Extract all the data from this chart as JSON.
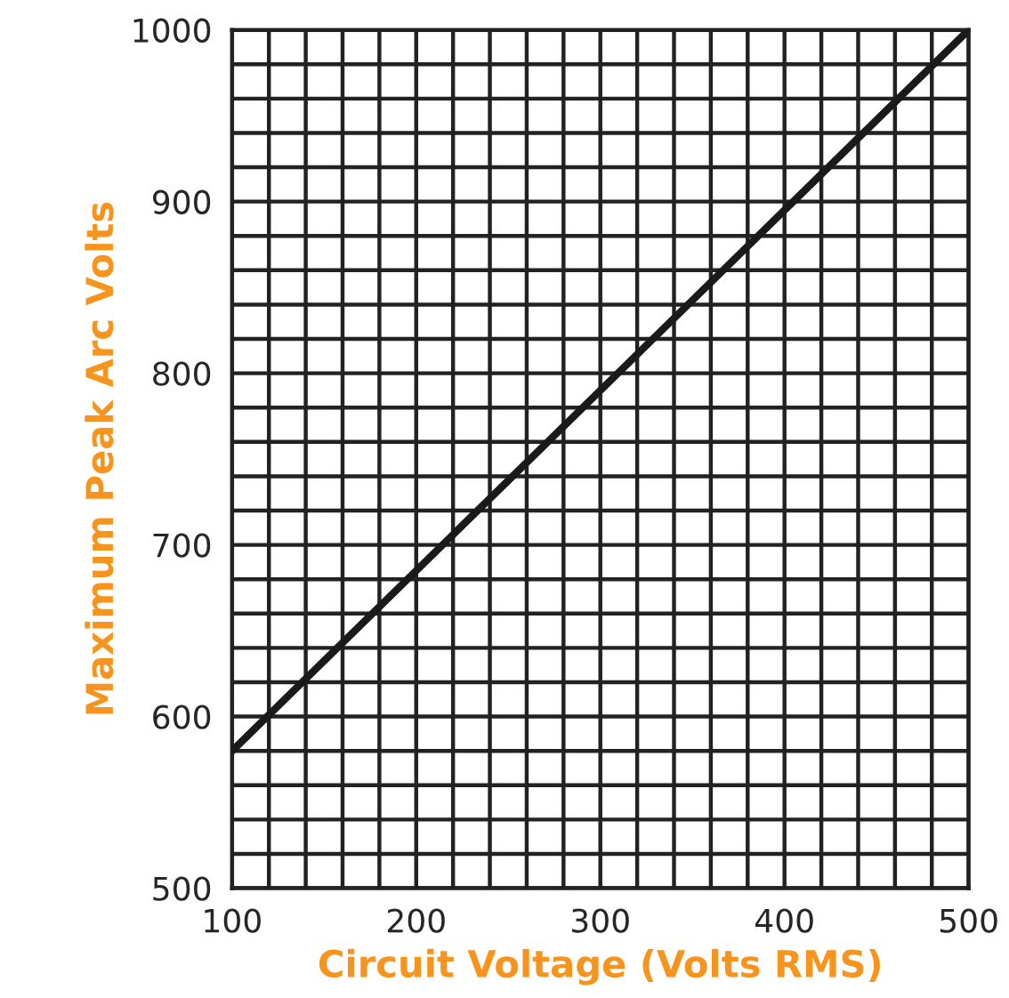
{
  "chart_data": {
    "type": "line",
    "xlabel": "Circuit Voltage (Volts RMS)",
    "ylabel": "Maximum Peak Arc Volts",
    "x": [
      100,
      500
    ],
    "series": [
      {
        "color": "#1a1a1a",
        "values": [
          580,
          1000
        ]
      }
    ],
    "xlim": [
      100,
      500
    ],
    "ylim": [
      500,
      1000
    ],
    "xticks": [
      100,
      {
        "value": 120,
        "label": null
      },
      {
        "value": 140,
        "label": null
      },
      {
        "value": 160,
        "label": null
      },
      {
        "value": 180,
        "label": null
      },
      200,
      {
        "value": 220,
        "label": null
      },
      {
        "value": 240,
        "label": null
      },
      {
        "value": 260,
        "label": null
      },
      {
        "value": 280,
        "label": null
      },
      300,
      {
        "value": 320,
        "label": null
      },
      {
        "value": 340,
        "label": null
      },
      {
        "value": 360,
        "label": null
      },
      {
        "value": 380,
        "label": null
      },
      400,
      {
        "value": 420,
        "label": null
      },
      {
        "value": 440,
        "label": null
      },
      {
        "value": 460,
        "label": null
      },
      {
        "value": 480,
        "label": null
      },
      500
    ],
    "yticks": [
      500,
      {
        "value": 520,
        "label": null
      },
      {
        "value": 540,
        "label": null
      },
      {
        "value": 560,
        "label": null
      },
      {
        "value": 580,
        "label": null
      },
      600,
      {
        "value": 620,
        "label": null
      },
      {
        "value": 640,
        "label": null
      },
      {
        "value": 660,
        "label": null
      },
      {
        "value": 680,
        "label": null
      },
      700,
      {
        "value": 720,
        "label": null
      },
      {
        "value": 740,
        "label": null
      },
      {
        "value": 760,
        "label": null
      },
      {
        "value": 780,
        "label": null
      },
      800,
      {
        "value": 820,
        "label": null
      },
      {
        "value": 840,
        "label": null
      },
      {
        "value": 860,
        "label": null
      },
      {
        "value": 880,
        "label": null
      },
      900,
      {
        "value": 920,
        "label": null
      },
      {
        "value": 940,
        "label": null
      },
      {
        "value": 960,
        "label": null
      },
      {
        "value": 980,
        "label": null
      },
      1000
    ],
    "grid": true,
    "marker": "none",
    "line_style": "solid"
  }
}
